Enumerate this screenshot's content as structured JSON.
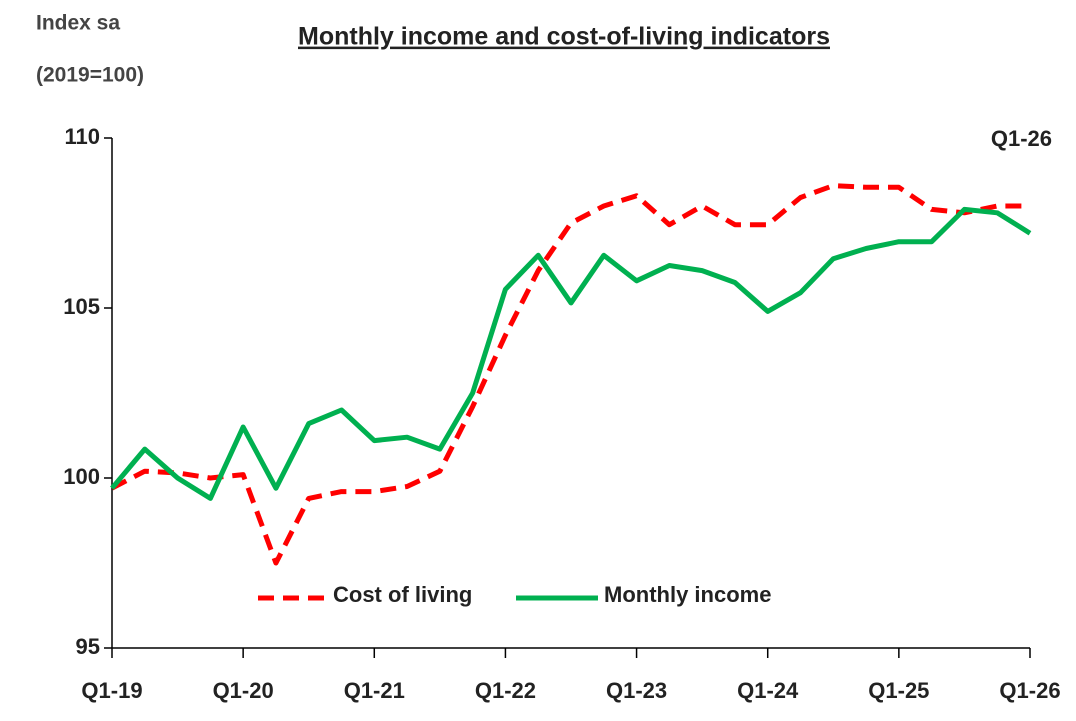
{
  "chart_data": {
    "type": "line",
    "title": "Monthly income and cost-of-living indicators",
    "ylabel": [
      "Index sa",
      "(2019=100)"
    ],
    "annotation": "Q1-26",
    "categories": [
      "Q1-19",
      null,
      null,
      null,
      "Q1-20",
      null,
      null,
      null,
      "Q1-21",
      null,
      null,
      null,
      "Q1-22",
      null,
      null,
      null,
      "Q1-23",
      null,
      null,
      null,
      "Q1-24",
      null,
      null,
      null,
      "Q1-25",
      null,
      null,
      null,
      "Q1-26"
    ],
    "series": [
      {
        "name": "Cost of living",
        "color": "#ff0000",
        "dash": true,
        "values": [
          99.7,
          100.2,
          100.15,
          100.0,
          100.1,
          97.5,
          99.4,
          99.6,
          99.6,
          99.75,
          100.2,
          102.1,
          104.2,
          106.1,
          107.5,
          108.0,
          108.3,
          107.45,
          108.0,
          107.45,
          107.45,
          108.25,
          108.6,
          108.55,
          108.55,
          107.9,
          107.8,
          108.0,
          108.0
        ]
      },
      {
        "name": "Monthly income",
        "color": "#00b050",
        "dash": false,
        "values": [
          99.7,
          100.85,
          100.0,
          99.4,
          101.5,
          99.7,
          101.6,
          102.0,
          101.1,
          101.2,
          100.85,
          102.5,
          105.55,
          106.55,
          105.15,
          106.55,
          105.8,
          106.25,
          106.1,
          105.75,
          104.9,
          105.45,
          106.45,
          106.75,
          106.95,
          106.95,
          107.9,
          107.8,
          107.2
        ]
      }
    ],
    "ylim": [
      95,
      110
    ],
    "yticks": [
      95,
      100,
      105,
      110
    ],
    "grid": false,
    "legend": "bottom"
  }
}
